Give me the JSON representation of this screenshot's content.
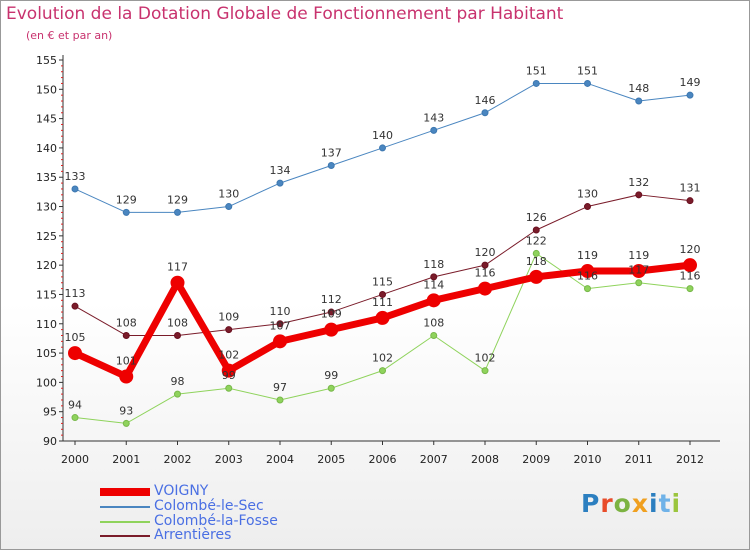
{
  "chart_data": {
    "type": "line",
    "title": "Evolution de la Dotation Globale de Fonctionnement par Habitant",
    "subtitle": "(en € et par an)",
    "xlabel": "",
    "ylabel": "",
    "x": [
      "2000",
      "2001",
      "2002",
      "2003",
      "2004",
      "2005",
      "2006",
      "2007",
      "2008",
      "2009",
      "2010",
      "2011",
      "2012"
    ],
    "yticks": [
      "90",
      "95",
      "100",
      "105",
      "110",
      "115",
      "120",
      "125",
      "130",
      "135",
      "140",
      "145",
      "150",
      "155"
    ],
    "ylim": [
      90,
      155
    ],
    "grid": false,
    "legend_position": "bottom-left",
    "series": [
      {
        "name": "VOIGNY",
        "color": "#ee0000",
        "values": [
          105,
          101,
          117,
          102,
          107,
          109,
          111,
          114,
          116,
          118,
          119,
          119,
          120
        ],
        "labels": [
          "105",
          "101",
          "117",
          "102",
          "107",
          "109",
          "111",
          "114",
          "116",
          "118",
          "119",
          "119",
          "120"
        ]
      },
      {
        "name": "Colombé-le-Sec",
        "color": "#4a86c0",
        "values": [
          133,
          129,
          129,
          130,
          134,
          137,
          140,
          143,
          146,
          151,
          151,
          148,
          149
        ],
        "labels": [
          "133",
          "129",
          "129",
          "130",
          "134",
          "137",
          "140",
          "143",
          "146",
          "151",
          "151",
          "148",
          "149"
        ]
      },
      {
        "name": "Colombé-la-Fosse",
        "color": "#8fd35c",
        "values": [
          94,
          93,
          98,
          99,
          97,
          99,
          102,
          108,
          102,
          122,
          116,
          117,
          116
        ],
        "labels": [
          "94",
          "93",
          "98",
          "99",
          "97",
          "99",
          "102",
          "108",
          "102",
          "122",
          "116",
          "117",
          "116"
        ]
      },
      {
        "name": "Arrentières",
        "color": "#7a1c2a",
        "values": [
          113,
          108,
          108,
          109,
          110,
          112,
          115,
          118,
          120,
          126,
          130,
          132,
          131
        ],
        "labels": [
          "113",
          "108",
          "108",
          "109",
          "110",
          "112",
          "115",
          "118",
          "120",
          "126",
          "130",
          "132",
          "131"
        ]
      }
    ]
  },
  "logo": {
    "parts": [
      "P",
      "r",
      "o",
      "x",
      "i",
      "t",
      "i"
    ]
  }
}
